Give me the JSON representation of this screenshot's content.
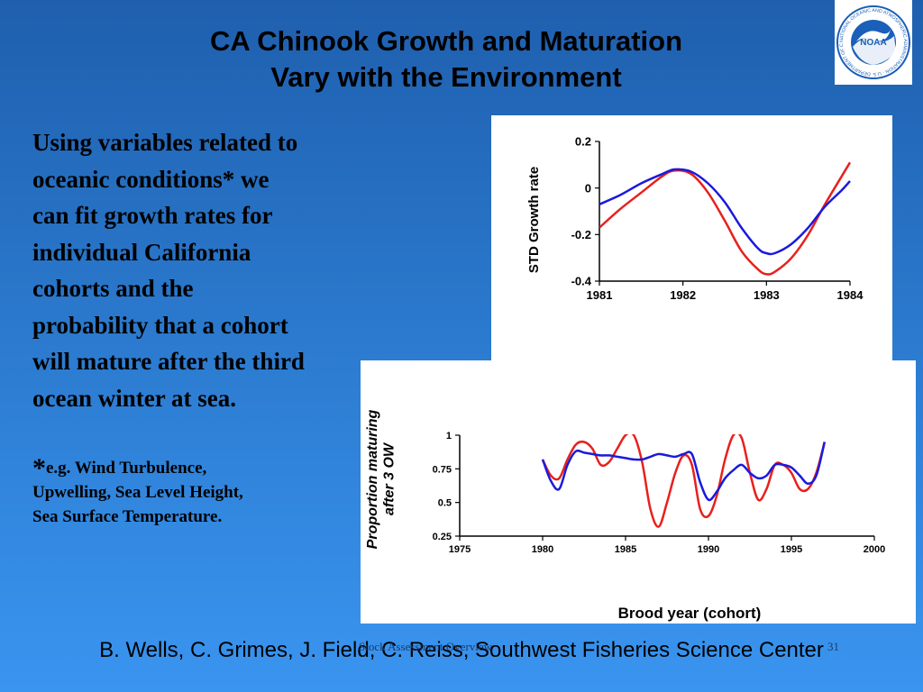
{
  "slide": {
    "title_line1": "CA Chinook Growth and Maturation",
    "title_line2": "Vary with the Environment",
    "body_lines": [
      "Using variables related to",
      "oceanic conditions* we",
      "can fit growth rates for",
      "individual California",
      "cohorts and the",
      "probability that a cohort",
      "will mature after the third",
      "ocean winter at sea."
    ],
    "footnote_star": "*",
    "footnote_lines": [
      "e.g. Wind Turbulence,",
      "Upwelling, Sea Level Height,",
      "Sea Surface Temperature."
    ],
    "credit": "B. Wells, C. Grimes, J. Field, C. Reiss, Southwest Fisheries Science Center",
    "footer_text": "Stock Assessment Overview",
    "slide_number": "31",
    "logo_text": "NOAA",
    "logo_ring_text": "NATIONAL OCEANIC AND ATMOSPHERIC ADMINISTRATION · U.S. DEPARTMENT OF COMMERCE"
  },
  "colors": {
    "red_series": "#e8201c",
    "blue_series": "#1a1adc",
    "logo_blue": "#1a5fb8"
  },
  "chart_data": [
    {
      "type": "line",
      "ylabel": "STD Growth rate",
      "xlabel": "",
      "xlim": [
        1981,
        1984
      ],
      "ylim": [
        -0.4,
        0.2
      ],
      "xticks": [
        "1981",
        "1982",
        "1983",
        "1984"
      ],
      "yticks": [
        "0.2",
        "0",
        "-0.2",
        "-0.4"
      ],
      "series": [
        {
          "color": "red",
          "x": [
            1981,
            1981.25,
            1981.5,
            1981.75,
            1981.9,
            1982.1,
            1982.3,
            1982.5,
            1982.7,
            1982.9,
            1983.0,
            1983.1,
            1983.3,
            1983.5,
            1983.7,
            1983.9,
            1984.0
          ],
          "values": [
            -0.17,
            -0.09,
            -0.02,
            0.05,
            0.075,
            0.06,
            -0.02,
            -0.14,
            -0.27,
            -0.35,
            -0.37,
            -0.36,
            -0.3,
            -0.2,
            -0.07,
            0.05,
            0.11
          ]
        },
        {
          "color": "blue",
          "x": [
            1981,
            1981.25,
            1981.5,
            1981.75,
            1981.9,
            1982.1,
            1982.3,
            1982.5,
            1982.7,
            1982.9,
            1983.0,
            1983.1,
            1983.3,
            1983.5,
            1983.7,
            1983.9,
            1984.0
          ],
          "values": [
            -0.07,
            -0.03,
            0.02,
            0.06,
            0.08,
            0.07,
            0.02,
            -0.06,
            -0.17,
            -0.26,
            -0.28,
            -0.28,
            -0.24,
            -0.17,
            -0.08,
            -0.01,
            0.03
          ]
        }
      ]
    },
    {
      "type": "line",
      "ylabel": "Proportion maturing after 3 OW",
      "xlabel": "Brood year (cohort)",
      "xlim": [
        1975,
        2000
      ],
      "ylim": [
        0.25,
        1
      ],
      "xticks": [
        "1975",
        "1980",
        "1985",
        "1990",
        "1995",
        "2000"
      ],
      "yticks": [
        "1",
        "0.75",
        "0.5",
        "0.25"
      ],
      "series": [
        {
          "color": "red",
          "x": [
            1980,
            1980.5,
            1981,
            1981.5,
            1982,
            1982.5,
            1983,
            1983.5,
            1984,
            1984.5,
            1985,
            1985.5,
            1986,
            1986.5,
            1987,
            1987.5,
            1988,
            1988.5,
            1989,
            1989.5,
            1990,
            1990.5,
            1991,
            1991.5,
            1992,
            1992.5,
            1993,
            1993.5,
            1994,
            1994.5,
            1995,
            1995.5,
            1996,
            1996.5,
            1997
          ],
          "values": [
            0.82,
            0.7,
            0.68,
            0.82,
            0.93,
            0.95,
            0.9,
            0.78,
            0.8,
            0.9,
            1.0,
            1.0,
            0.8,
            0.45,
            0.32,
            0.5,
            0.72,
            0.85,
            0.78,
            0.45,
            0.4,
            0.55,
            0.82,
            1.0,
            0.98,
            0.72,
            0.52,
            0.6,
            0.78,
            0.78,
            0.72,
            0.6,
            0.6,
            0.72,
            0.95
          ]
        },
        {
          "color": "blue",
          "x": [
            1980,
            1980.5,
            1981,
            1981.5,
            1982,
            1982.5,
            1983,
            1983.5,
            1984,
            1984.5,
            1985,
            1985.5,
            1986,
            1986.5,
            1987,
            1987.5,
            1988,
            1988.5,
            1989,
            1989.5,
            1990,
            1990.5,
            1991,
            1991.5,
            1992,
            1992.5,
            1993,
            1993.5,
            1994,
            1994.5,
            1995,
            1995.5,
            1996,
            1996.5,
            1997
          ],
          "values": [
            0.82,
            0.66,
            0.6,
            0.78,
            0.88,
            0.87,
            0.86,
            0.85,
            0.85,
            0.84,
            0.83,
            0.82,
            0.82,
            0.84,
            0.86,
            0.85,
            0.84,
            0.86,
            0.86,
            0.65,
            0.52,
            0.58,
            0.68,
            0.74,
            0.78,
            0.72,
            0.68,
            0.7,
            0.78,
            0.78,
            0.76,
            0.7,
            0.64,
            0.7,
            0.95
          ]
        }
      ]
    }
  ]
}
